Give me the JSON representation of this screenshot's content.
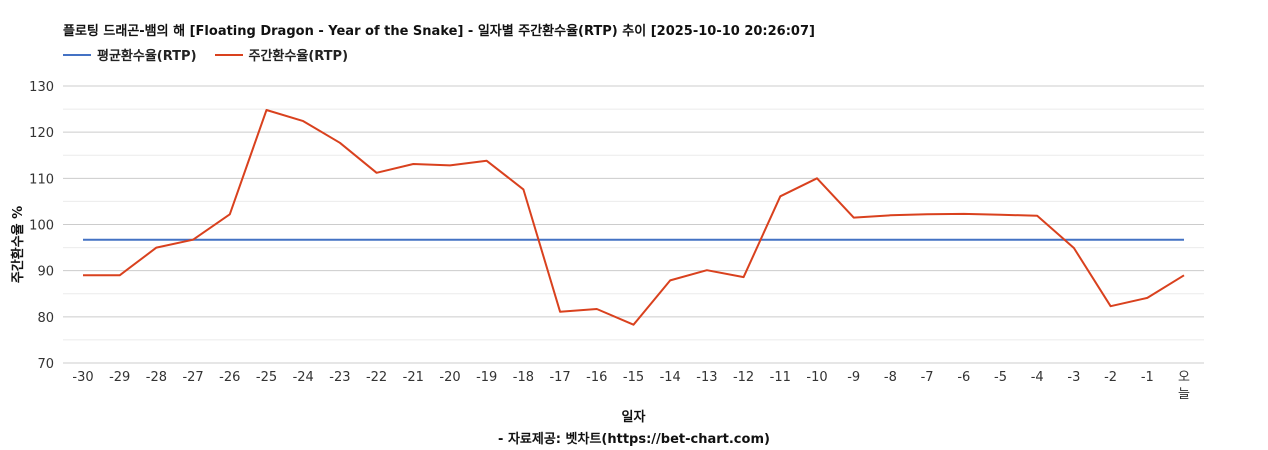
{
  "page_title": "플로팅 드래곤-뱀의 해 [Floating Dragon - Year of the Snake] - 일자별 주간환수율(RTP) 추이 [2025-10-10 20:26:07]",
  "footer": "- 자료제공: 벳차트(https://bet-chart.com)",
  "chart_data": {
    "type": "line",
    "xlabel": "일자",
    "ylabel": "주간환수율 %",
    "ylim": [
      70,
      130
    ],
    "yticks": [
      70,
      80,
      90,
      100,
      110,
      120,
      130
    ],
    "grid": true,
    "legend_position": "top-left",
    "categories": [
      "-30",
      "-29",
      "-28",
      "-27",
      "-26",
      "-25",
      "-24",
      "-23",
      "-22",
      "-21",
      "-20",
      "-19",
      "-18",
      "-17",
      "-16",
      "-15",
      "-14",
      "-13",
      "-12",
      "-11",
      "-10",
      "-9",
      "-8",
      "-7",
      "-6",
      "-5",
      "-4",
      "-3",
      "-2",
      "-1",
      "오늘"
    ],
    "series": [
      {
        "name": "평균환수율(RTP)",
        "color": "#4472c4",
        "values": [
          96.7,
          96.7,
          96.7,
          96.7,
          96.7,
          96.7,
          96.7,
          96.7,
          96.7,
          96.7,
          96.7,
          96.7,
          96.7,
          96.7,
          96.7,
          96.7,
          96.7,
          96.7,
          96.7,
          96.7,
          96.7,
          96.7,
          96.7,
          96.7,
          96.7,
          96.7,
          96.7,
          96.7,
          96.7,
          96.7,
          96.7
        ]
      },
      {
        "name": "주간환수율(RTP)",
        "color": "#d9411e",
        "values": [
          89.0,
          89.0,
          95.0,
          96.7,
          102.2,
          124.8,
          122.4,
          117.7,
          111.2,
          113.1,
          112.8,
          113.8,
          107.6,
          81.1,
          81.7,
          78.3,
          87.9,
          90.1,
          88.6,
          106.1,
          110.0,
          101.5,
          102.0,
          102.2,
          102.3,
          102.1,
          101.9,
          94.9,
          82.3,
          84.1,
          89.0
        ]
      }
    ]
  }
}
